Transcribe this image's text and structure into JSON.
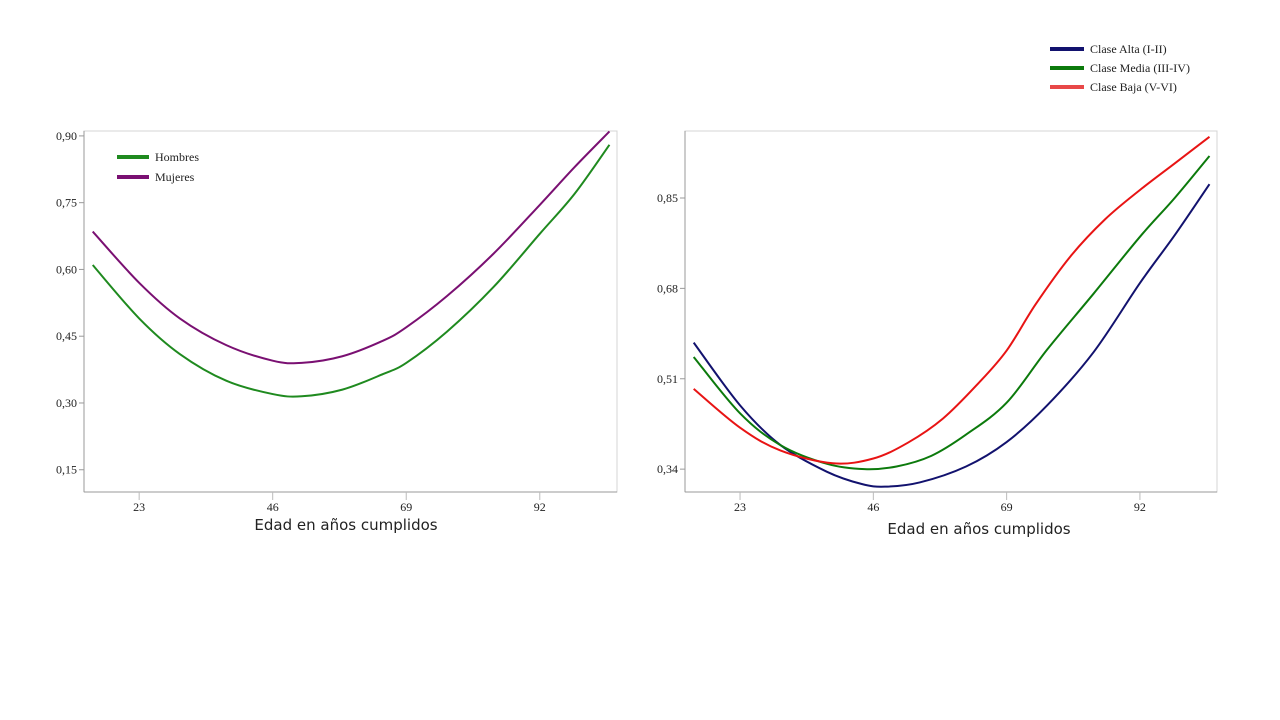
{
  "chart_data": [
    {
      "type": "line",
      "title": "",
      "xlabel": "Edad en años cumplidos",
      "ylabel": "",
      "xlim": [
        13.5,
        105.3
      ],
      "ylim": [
        0.1,
        0.911
      ],
      "xticks": [
        23,
        46,
        69,
        92
      ],
      "xtick_labels": [
        "23",
        "46",
        "69",
        "92"
      ],
      "yticks": [
        0.15,
        0.3,
        0.45,
        0.6,
        0.75,
        0.9
      ],
      "ytick_labels": [
        "0,15",
        "0,30",
        "0,45",
        "0,60",
        "0,75",
        "0,90"
      ],
      "legend_position": "top-left",
      "grid": false,
      "series": [
        {
          "name": "Hombres",
          "color": "#1f8a1f",
          "x": [
            15,
            23,
            30,
            38,
            46,
            51,
            58,
            65,
            69,
            76,
            84,
            92,
            98,
            104
          ],
          "y": [
            0.61,
            0.49,
            0.41,
            0.35,
            0.32,
            0.315,
            0.33,
            0.365,
            0.39,
            0.46,
            0.56,
            0.68,
            0.77,
            0.88
          ]
        },
        {
          "name": "Mujeres",
          "color": "#7a1072",
          "x": [
            15,
            23,
            30,
            38,
            46,
            51,
            58,
            65,
            69,
            76,
            84,
            92,
            98,
            104
          ],
          "y": [
            0.685,
            0.57,
            0.49,
            0.43,
            0.395,
            0.39,
            0.405,
            0.44,
            0.47,
            0.54,
            0.635,
            0.745,
            0.83,
            0.91
          ]
        }
      ]
    },
    {
      "type": "line",
      "title": "",
      "xlabel": "Edad en años cumplidos",
      "ylabel": "",
      "xlim": [
        13.5,
        105.3
      ],
      "ylim": [
        0.297,
        0.976
      ],
      "xticks": [
        23,
        46,
        69,
        92
      ],
      "xtick_labels": [
        "23",
        "46",
        "69",
        "92"
      ],
      "yticks": [
        0.34,
        0.51,
        0.68,
        0.85
      ],
      "ytick_labels": [
        "0,34",
        "0,51",
        "0,68",
        "0,85"
      ],
      "legend_position": "top-right-outside",
      "grid": false,
      "series": [
        {
          "name": "Clase Alta (I-II)",
          "color": "#12126e",
          "x": [
            15,
            23,
            30,
            38,
            44,
            48,
            54,
            62,
            69,
            76,
            84,
            92,
            98,
            104
          ],
          "y": [
            0.578,
            0.46,
            0.385,
            0.335,
            0.312,
            0.307,
            0.315,
            0.345,
            0.391,
            0.46,
            0.56,
            0.69,
            0.78,
            0.876
          ]
        },
        {
          "name": "Clase Media (III-IV)",
          "color": "#0c7a0c",
          "x": [
            15,
            23,
            30,
            38,
            44.5,
            50,
            56,
            62,
            69,
            76,
            84,
            92,
            98,
            104
          ],
          "y": [
            0.551,
            0.445,
            0.385,
            0.35,
            0.34,
            0.345,
            0.365,
            0.405,
            0.465,
            0.565,
            0.67,
            0.777,
            0.85,
            0.929
          ]
        },
        {
          "name": "Clase Baja (V-VI)",
          "color": "#e81414",
          "legend_color": "#e84848",
          "x": [
            15,
            23,
            30,
            39,
            46,
            52,
            58,
            64,
            69,
            74,
            80,
            86,
            92,
            98,
            104
          ],
          "y": [
            0.491,
            0.418,
            0.375,
            0.351,
            0.36,
            0.39,
            0.435,
            0.5,
            0.563,
            0.65,
            0.74,
            0.81,
            0.865,
            0.915,
            0.965
          ]
        }
      ]
    }
  ]
}
